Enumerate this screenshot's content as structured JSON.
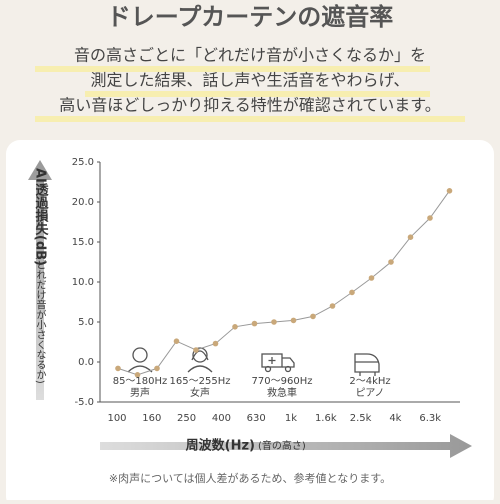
{
  "chart_data": {
    "type": "line",
    "title": "ドレープカーテンの遮音率",
    "subtitle": [
      "音の高さごとに「どれだけ音が小さくなるか」を",
      "測定した結果、話し声や生活音をやわらげ、",
      "高い音ほどしっかり抑える特性が確認されています。"
    ],
    "y_label": "AI透過損失(dB)",
    "y_label_note": "(どれだけ音が小さくなるか)",
    "x_label": "周波数(Hz)",
    "x_label_note": "(音の高さ)",
    "categories": [
      "100",
      null,
      "160",
      null,
      "250",
      null,
      "400",
      null,
      "630",
      null,
      "1k",
      null,
      "1.6k",
      null,
      "2.5k",
      null,
      "4k",
      null,
      "6.3k"
    ],
    "values": [
      -0.8,
      -1.6,
      -0.8,
      2.6,
      1.5,
      2.3,
      4.4,
      4.8,
      5.0,
      5.2,
      5.7,
      7.0,
      8.7,
      10.5,
      12.5,
      15.6,
      18.0,
      21.4,
      null
    ],
    "color": "#c9a87a",
    "ylim": [
      -5,
      25
    ],
    "yticks": [
      {
        "value": -5,
        "label": "-5.0"
      },
      {
        "value": 0,
        "label": "0.0"
      },
      {
        "value": 5,
        "label": "5.0"
      },
      {
        "value": 10,
        "label": "10.0"
      },
      {
        "value": 15,
        "label": "15.0"
      },
      {
        "value": 20,
        "label": "20.0"
      },
      {
        "value": 25,
        "label": "25.0"
      }
    ],
    "grid": false,
    "annotations": [
      {
        "range": "85〜180Hz",
        "source": "男声"
      },
      {
        "range": "165〜255Hz",
        "source": "女声"
      },
      {
        "range": "770〜960Hz",
        "source": "救急車"
      },
      {
        "range": "2〜4kHz",
        "source": "ピアノ"
      }
    ],
    "footnote": "※肉声については個人差があるため、参考値となります。"
  }
}
